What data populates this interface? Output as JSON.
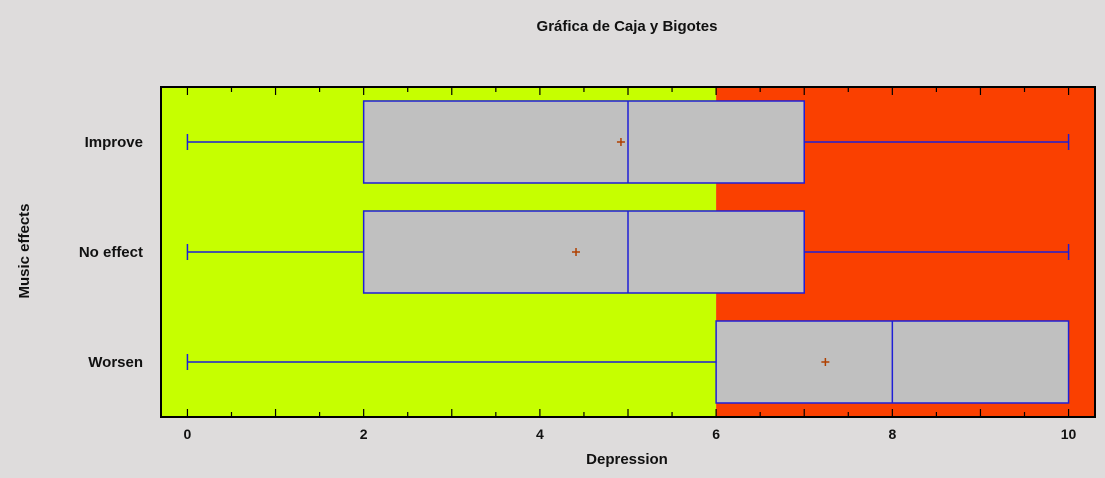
{
  "chart_data": {
    "type": "box",
    "title": "Gráfica de Caja y Bigotes",
    "xlabel": "Depression",
    "ylabel": "Music effects",
    "xlim": [
      -0.3,
      10.3
    ],
    "xticks": [
      0,
      2,
      4,
      6,
      8,
      10
    ],
    "orientation": "horizontal",
    "categories": [
      "Improve",
      "No effect",
      "Worsen"
    ],
    "boxes": [
      {
        "category": "Improve",
        "min": 0,
        "q1": 2,
        "median": 5,
        "q3": 7,
        "max": 10,
        "mean": 4.92
      },
      {
        "category": "No effect",
        "min": 0,
        "q1": 2,
        "median": 5,
        "q3": 7,
        "max": 10,
        "mean": 4.41
      },
      {
        "category": "Worsen",
        "min": 0,
        "q1": 6,
        "median": 8,
        "q3": 10,
        "max": 10,
        "mean": 7.24
      }
    ],
    "background_zones": [
      {
        "from": -0.3,
        "to": 6,
        "color": "#c6ff00"
      },
      {
        "from": 6,
        "to": 10.3,
        "color": "#fa4000"
      }
    ],
    "colors": {
      "page_background": "#dedcdc",
      "box_fill": "#c0c0c0",
      "box_stroke": "#1f1fd6",
      "mean_marker": "#b04000",
      "frame": "#000000"
    }
  }
}
